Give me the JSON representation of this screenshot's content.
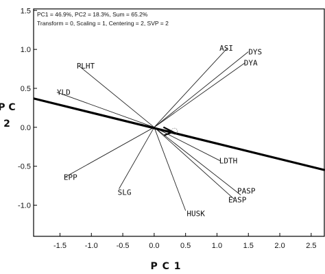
{
  "chart_data": {
    "type": "scatter",
    "annotations": [
      "PC1 = 46.9%, PC2 = 18.3%, Sum = 65.2%",
      "Transform = 0, Scaling = 1, Centering = 2, SVP = 2"
    ],
    "xlabel": "P C 1",
    "ylabel": "P C\n2",
    "xlim": [
      -1.92,
      2.72
    ],
    "ylim": [
      -1.4,
      1.52
    ],
    "x_ticks": [
      -1.5,
      -1.0,
      -0.5,
      0.0,
      0.5,
      1.0,
      1.5,
      2.0,
      2.5
    ],
    "x_tick_labels": [
      "-1.5",
      "-1.0",
      "-0.5",
      "0.0",
      "0.5",
      "1.0",
      "1.5",
      "2.0",
      "2.5"
    ],
    "y_ticks": [
      -1.0,
      -0.5,
      0.0,
      0.5,
      1.0,
      1.5
    ],
    "y_tick_labels": [
      "-1.0",
      "-0.5",
      "0.0",
      "0.5",
      "1.0",
      "1.5"
    ],
    "grid": false,
    "vectors": [
      {
        "label": "ASI",
        "x": 1.17,
        "y": 1.02
      },
      {
        "label": "DYS",
        "x": 1.5,
        "y": 0.97
      },
      {
        "label": "DYA",
        "x": 1.45,
        "y": 0.83
      },
      {
        "label": "PLHT",
        "x": -1.2,
        "y": 0.79
      },
      {
        "label": "YLD",
        "x": -1.55,
        "y": 0.45
      },
      {
        "label": "LDTH",
        "x": 1.05,
        "y": -0.43
      },
      {
        "label": "PASP",
        "x": 1.38,
        "y": -0.87
      },
      {
        "label": "EASP",
        "x": 1.27,
        "y": -0.92
      },
      {
        "label": "HUSK",
        "x": 0.5,
        "y": -1.07
      },
      {
        "label": "SLG",
        "x": -0.56,
        "y": -0.79
      },
      {
        "label": "EPP",
        "x": -1.42,
        "y": -0.64
      }
    ],
    "ideal_axis": {
      "x1": -1.92,
      "y1": 0.37,
      "x2": 2.72,
      "y2": -0.55,
      "arrow_at": [
        0.3,
        -0.06
      ]
    }
  }
}
